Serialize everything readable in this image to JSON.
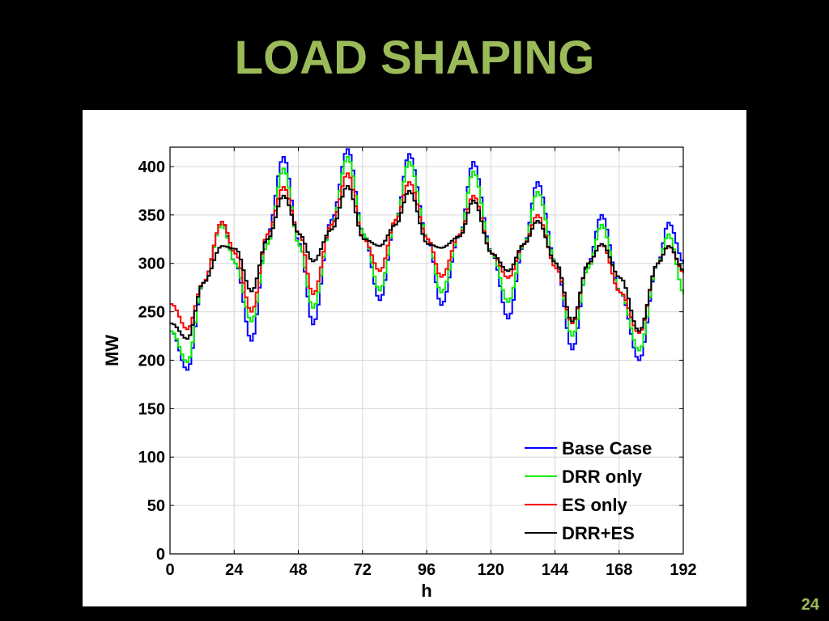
{
  "slide": {
    "title": "LOAD SHAPING",
    "page_number": "24",
    "title_color": "#9bbb59"
  },
  "chart_data": {
    "type": "line",
    "title": "",
    "xlabel": "h",
    "ylabel": "MW",
    "xlim": [
      0,
      192
    ],
    "ylim": [
      0,
      420
    ],
    "xticks": [
      0,
      24,
      48,
      72,
      96,
      120,
      144,
      168,
      192
    ],
    "yticks": [
      0,
      50,
      100,
      150,
      200,
      250,
      300,
      350,
      400
    ],
    "grid": true,
    "legend_position": "bottom-right",
    "step_width_h": 1,
    "series": [
      {
        "name": "Base Case",
        "color": "#0000ff",
        "points": [
          [
            0,
            230
          ],
          [
            6,
            190
          ],
          [
            12,
            280
          ],
          [
            19,
            343
          ],
          [
            24,
            300
          ],
          [
            30,
            220
          ],
          [
            36,
            330
          ],
          [
            42,
            410
          ],
          [
            48,
            320
          ],
          [
            53,
            237
          ],
          [
            60,
            345
          ],
          [
            66,
            418
          ],
          [
            72,
            330
          ],
          [
            78,
            262
          ],
          [
            84,
            345
          ],
          [
            89,
            413
          ],
          [
            96,
            325
          ],
          [
            101,
            257
          ],
          [
            108,
            330
          ],
          [
            113,
            405
          ],
          [
            120,
            310
          ],
          [
            126,
            243
          ],
          [
            132,
            320
          ],
          [
            137,
            384
          ],
          [
            144,
            300
          ],
          [
            150,
            211
          ],
          [
            156,
            300
          ],
          [
            161,
            350
          ],
          [
            168,
            270
          ],
          [
            175,
            200
          ],
          [
            182,
            300
          ],
          [
            186,
            342
          ],
          [
            192,
            300
          ]
        ]
      },
      {
        "name": "DRR only",
        "color": "#00ee00",
        "points": [
          [
            0,
            230
          ],
          [
            6,
            198
          ],
          [
            12,
            280
          ],
          [
            19,
            340
          ],
          [
            24,
            300
          ],
          [
            30,
            240
          ],
          [
            36,
            320
          ],
          [
            42,
            398
          ],
          [
            48,
            318
          ],
          [
            53,
            254
          ],
          [
            60,
            340
          ],
          [
            66,
            410
          ],
          [
            72,
            330
          ],
          [
            78,
            272
          ],
          [
            84,
            345
          ],
          [
            89,
            405
          ],
          [
            96,
            325
          ],
          [
            101,
            270
          ],
          [
            108,
            330
          ],
          [
            113,
            395
          ],
          [
            120,
            310
          ],
          [
            126,
            260
          ],
          [
            132,
            320
          ],
          [
            137,
            374
          ],
          [
            144,
            300
          ],
          [
            150,
            225
          ],
          [
            156,
            295
          ],
          [
            161,
            340
          ],
          [
            168,
            270
          ],
          [
            175,
            210
          ],
          [
            182,
            300
          ],
          [
            186,
            330
          ],
          [
            192,
            268
          ]
        ]
      },
      {
        "name": "ES only",
        "color": "#ff0000",
        "points": [
          [
            0,
            258
          ],
          [
            6,
            232
          ],
          [
            12,
            280
          ],
          [
            19,
            343
          ],
          [
            24,
            310
          ],
          [
            30,
            250
          ],
          [
            36,
            330
          ],
          [
            42,
            379
          ],
          [
            48,
            330
          ],
          [
            53,
            268
          ],
          [
            60,
            340
          ],
          [
            66,
            393
          ],
          [
            72,
            325
          ],
          [
            78,
            292
          ],
          [
            84,
            345
          ],
          [
            89,
            384
          ],
          [
            96,
            325
          ],
          [
            101,
            286
          ],
          [
            108,
            330
          ],
          [
            113,
            370
          ],
          [
            120,
            310
          ],
          [
            126,
            285
          ],
          [
            132,
            320
          ],
          [
            137,
            350
          ],
          [
            144,
            295
          ],
          [
            150,
            238
          ],
          [
            156,
            300
          ],
          [
            161,
            320
          ],
          [
            168,
            270
          ],
          [
            175,
            228
          ],
          [
            182,
            300
          ],
          [
            186,
            318
          ],
          [
            192,
            290
          ]
        ]
      },
      {
        "name": "DRR+ES",
        "color": "#000000",
        "points": [
          [
            0,
            238
          ],
          [
            6,
            222
          ],
          [
            12,
            280
          ],
          [
            19,
            318
          ],
          [
            24,
            315
          ],
          [
            30,
            271
          ],
          [
            36,
            325
          ],
          [
            42,
            370
          ],
          [
            48,
            330
          ],
          [
            53,
            302
          ],
          [
            60,
            335
          ],
          [
            66,
            380
          ],
          [
            72,
            325
          ],
          [
            78,
            318
          ],
          [
            84,
            340
          ],
          [
            89,
            375
          ],
          [
            96,
            320
          ],
          [
            101,
            316
          ],
          [
            108,
            328
          ],
          [
            113,
            365
          ],
          [
            120,
            310
          ],
          [
            126,
            292
          ],
          [
            132,
            320
          ],
          [
            137,
            344
          ],
          [
            144,
            300
          ],
          [
            150,
            240
          ],
          [
            156,
            300
          ],
          [
            161,
            320
          ],
          [
            168,
            285
          ],
          [
            175,
            230
          ],
          [
            182,
            300
          ],
          [
            186,
            318
          ],
          [
            192,
            292
          ]
        ]
      }
    ]
  }
}
